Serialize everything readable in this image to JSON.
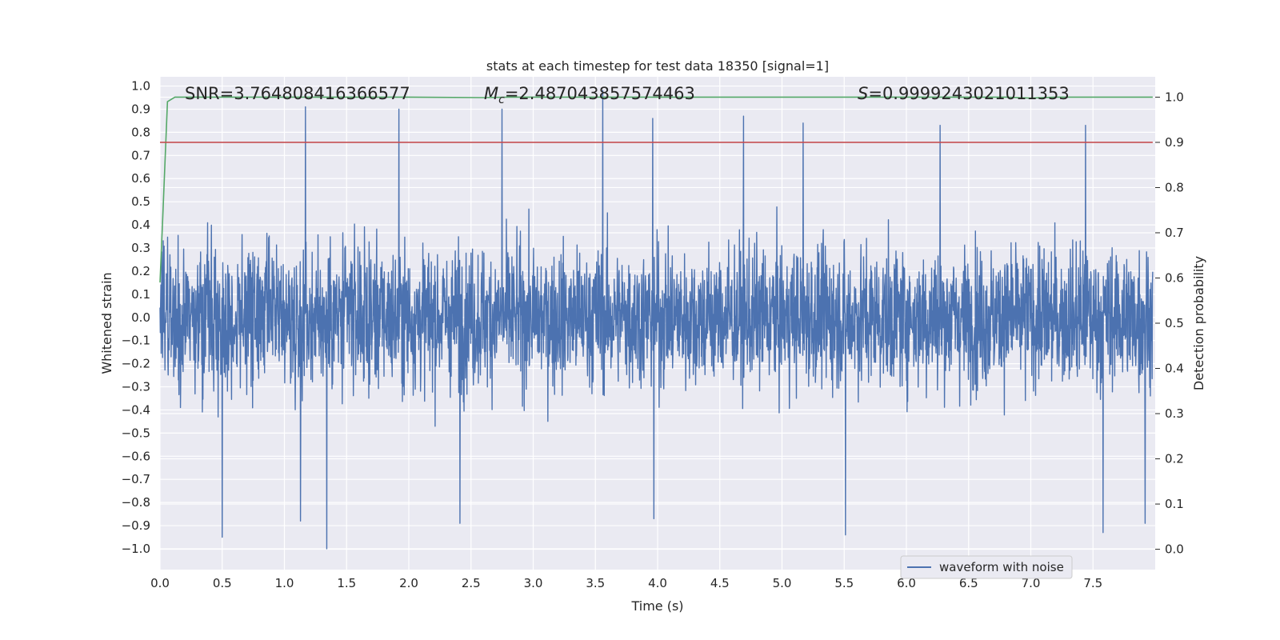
{
  "chart_data": {
    "type": "line",
    "title": "stats at each timestep for test data 18350 [signal=1]",
    "xlabel": "Time (s)",
    "ylabel_left": "Whitened strain",
    "ylabel_right": "Detection probability",
    "xlim": [
      0.0,
      8.0
    ],
    "ylim_left": [
      -1.09,
      1.04
    ],
    "ylim_right": [
      -0.045,
      1.045
    ],
    "x_ticks": [
      "0.0",
      "0.5",
      "1.0",
      "1.5",
      "2.0",
      "2.5",
      "3.0",
      "3.5",
      "4.0",
      "4.5",
      "5.0",
      "5.5",
      "6.0",
      "6.5",
      "7.0",
      "7.5"
    ],
    "y_left_ticks": [
      "1.0",
      "0.9",
      "0.8",
      "0.7",
      "0.6",
      "0.5",
      "0.4",
      "0.3",
      "0.2",
      "0.1",
      "0.0",
      "−0.1",
      "−0.2",
      "−0.3",
      "−0.4",
      "−0.5",
      "−0.6",
      "−0.7",
      "−0.8",
      "−0.9",
      "−1.0"
    ],
    "y_right_ticks": [
      "1.0",
      "0.9",
      "0.8",
      "0.7",
      "0.6",
      "0.5",
      "0.4",
      "0.3",
      "0.2",
      "0.1",
      "0.0"
    ],
    "grid": true,
    "legend_position": "bottom-right",
    "annotations": {
      "snr": "SNR=3.764808416366577",
      "mc_symbol": "M",
      "mc_sub": "c",
      "mc_value": "=2.487043857574463",
      "s_symbol": "S",
      "s_value": "=0.9999243021011353"
    },
    "series": [
      {
        "name": "waveform with noise",
        "axis": "left",
        "color": "#4c72b0",
        "kind": "dense noise, amplitude mostly within ±0.5",
        "x_range": [
          0.0,
          7.98
        ],
        "peaks": [
          {
            "x": 1.17,
            "y": 0.91
          },
          {
            "x": 1.92,
            "y": 0.9
          },
          {
            "x": 2.75,
            "y": 0.9
          },
          {
            "x": 3.56,
            "y": 0.98
          },
          {
            "x": 3.96,
            "y": 0.86
          },
          {
            "x": 4.69,
            "y": 0.87
          },
          {
            "x": 5.17,
            "y": 0.84
          },
          {
            "x": 6.27,
            "y": 0.83
          },
          {
            "x": 7.44,
            "y": 0.83
          }
        ],
        "troughs": [
          {
            "x": 0.5,
            "y": -0.95
          },
          {
            "x": 1.13,
            "y": -0.88
          },
          {
            "x": 1.34,
            "y": -1.0
          },
          {
            "x": 2.41,
            "y": -0.89
          },
          {
            "x": 3.97,
            "y": -0.87
          },
          {
            "x": 5.51,
            "y": -0.94
          },
          {
            "x": 7.58,
            "y": -0.93
          },
          {
            "x": 7.92,
            "y": -0.89
          }
        ]
      },
      {
        "name": "",
        "axis": "right",
        "color": "#55a868",
        "x": [
          0.0,
          0.02,
          0.06,
          0.12,
          0.5,
          1.0,
          2.0,
          2.6,
          2.8,
          3.0,
          4.0,
          5.0,
          6.0,
          6.8,
          7.0,
          7.2,
          7.98
        ],
        "y": [
          0.59,
          0.72,
          0.99,
          1.0,
          1.0,
          1.0,
          1.0,
          0.999,
          1.0,
          1.0,
          1.0,
          1.0,
          1.0,
          1.0,
          0.998,
          1.0,
          1.0
        ]
      },
      {
        "name": "",
        "axis": "right",
        "color": "#c44e52",
        "x": [
          0.0,
          7.98
        ],
        "y": [
          0.9,
          0.9
        ]
      }
    ]
  }
}
